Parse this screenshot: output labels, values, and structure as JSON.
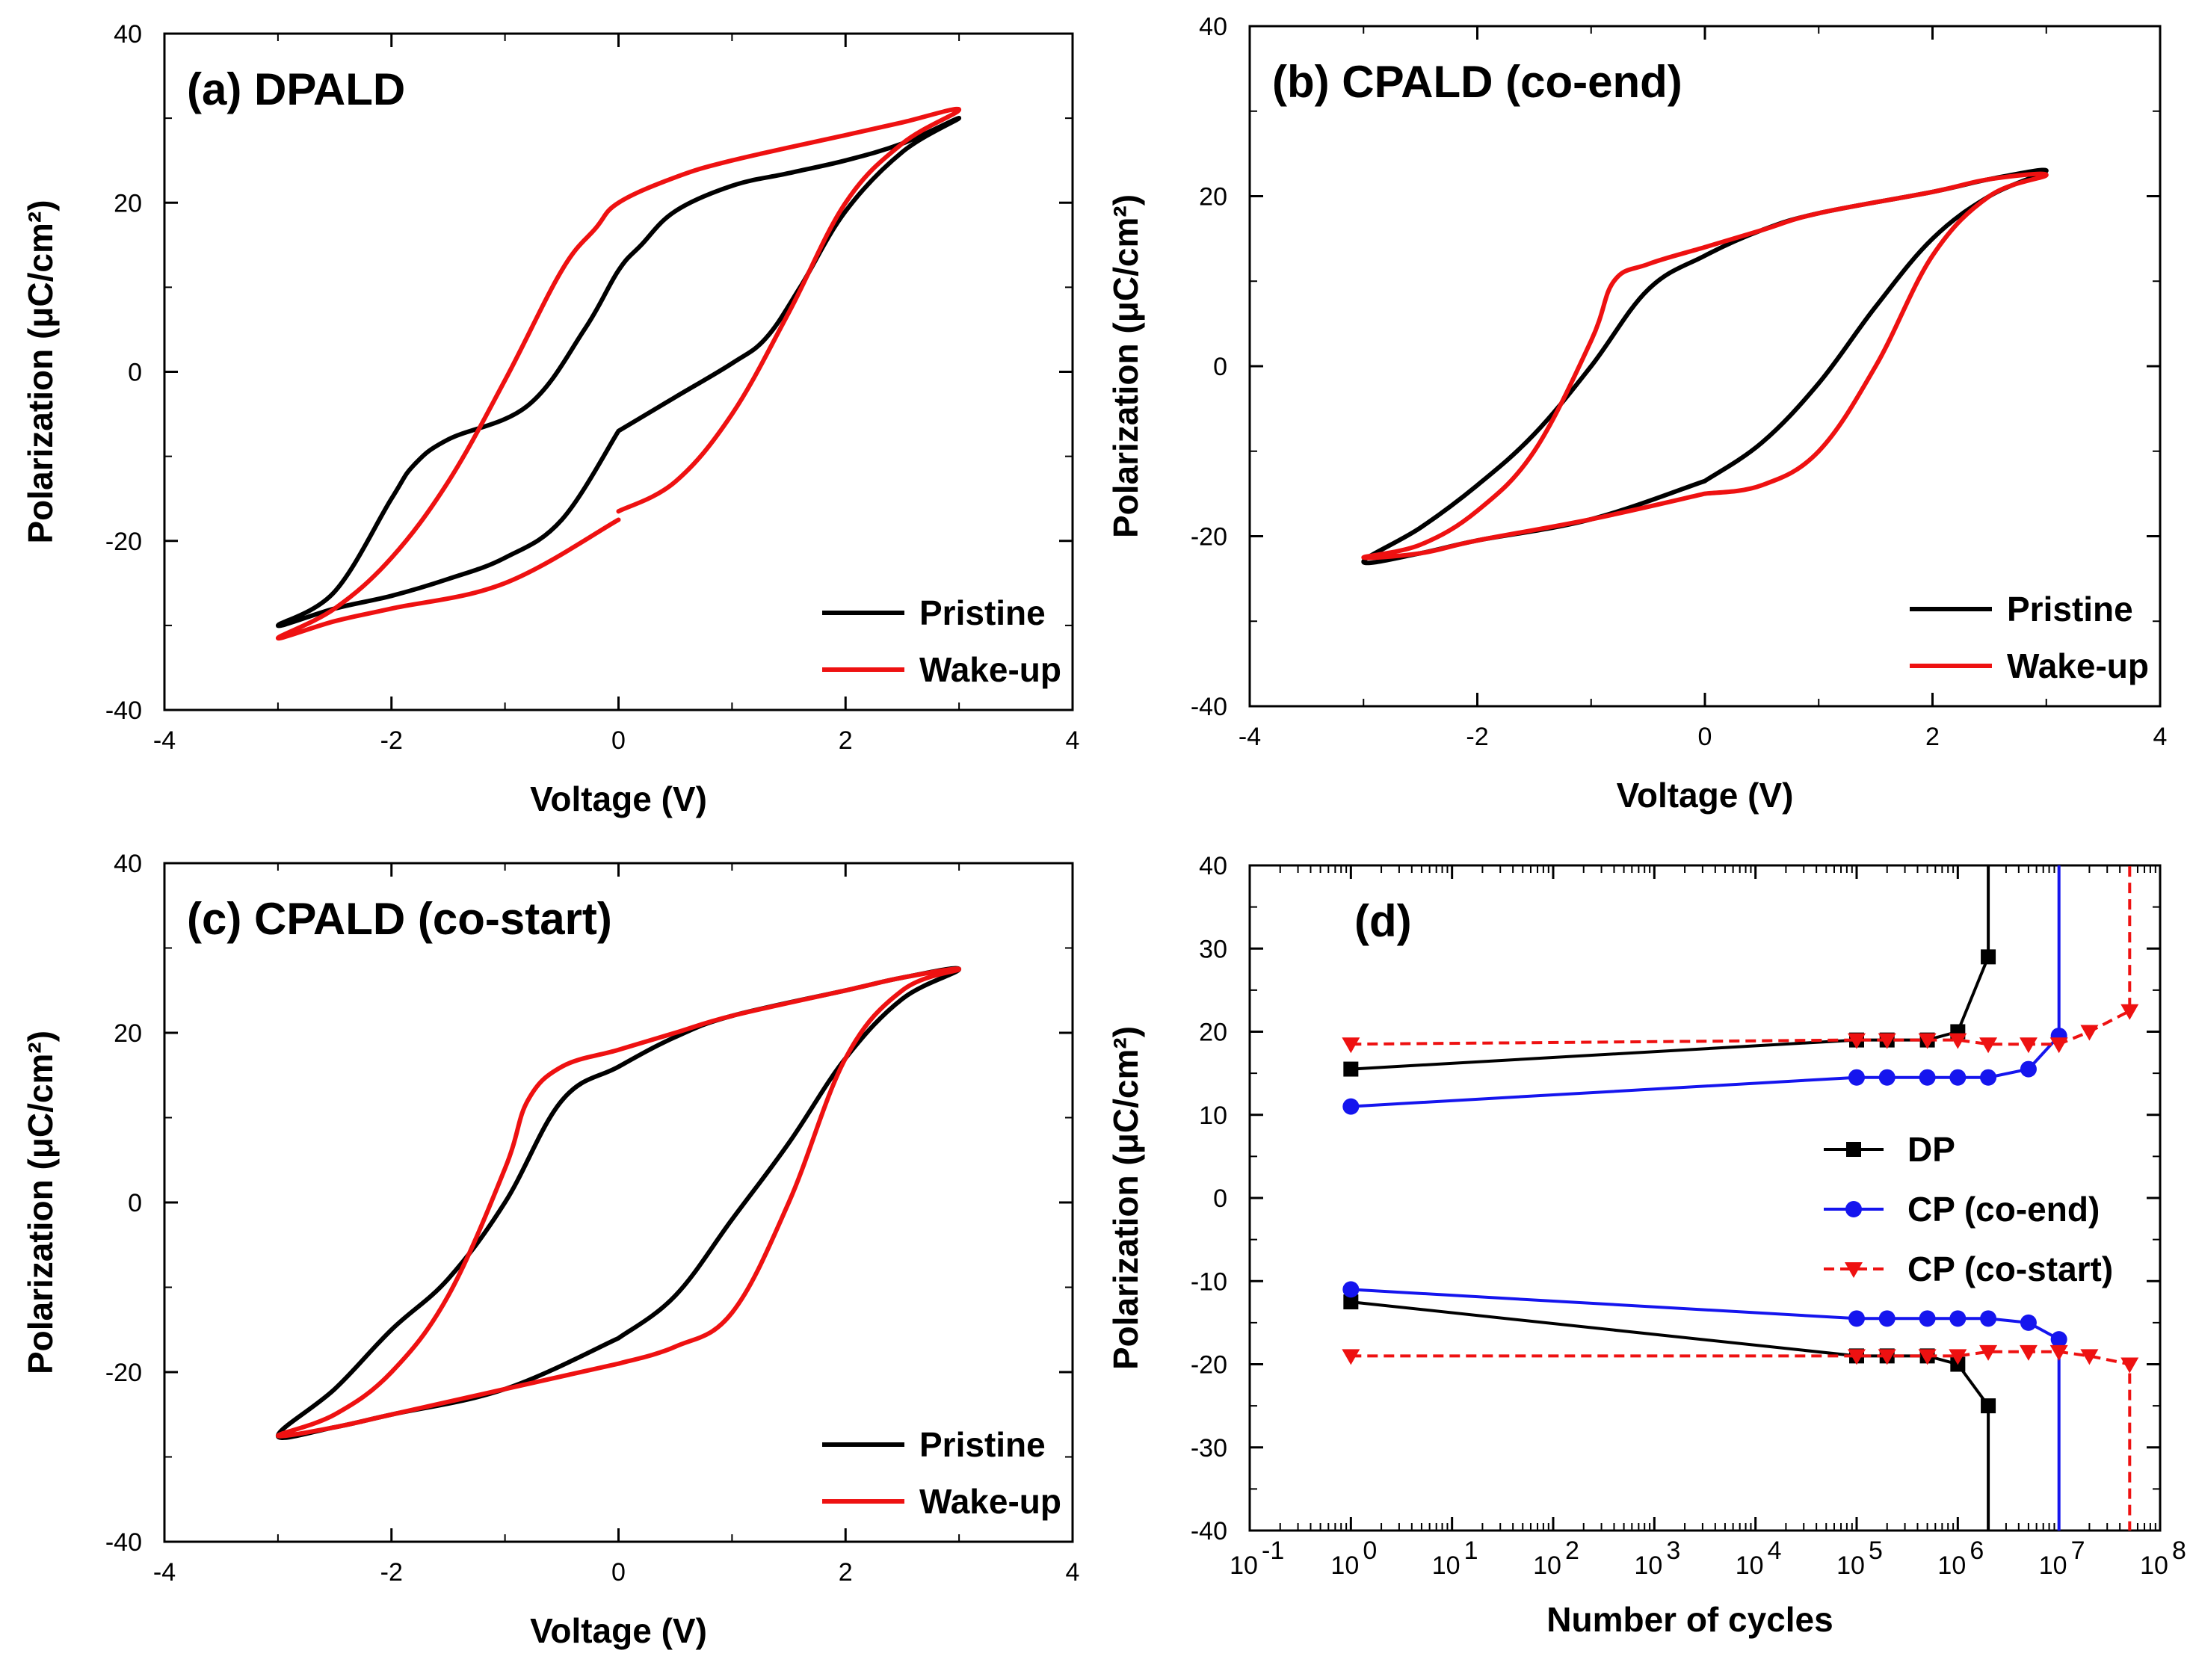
{
  "chart_data": [
    {
      "id": "a",
      "type": "line",
      "title": "(a) DPALD",
      "xlabel": "Voltage (V)",
      "ylabel": "Polarization (μC/cm²)",
      "xlim": [
        -4,
        4
      ],
      "ylim": [
        -40,
        40
      ],
      "xticks": [
        -4,
        -2,
        0,
        2,
        4
      ],
      "yticks": [
        -40,
        -20,
        0,
        20,
        40
      ],
      "xtick_labels": [
        "-4",
        "-2",
        "0",
        "2",
        "4"
      ],
      "ytick_labels": [
        "-40",
        "-20",
        "0",
        "20",
        "40"
      ],
      "legend": {
        "position": "bottom-right"
      },
      "series": [
        {
          "name": "Pristine",
          "color": "#000000",
          "x": [
            0,
            0.5,
            1.0,
            1.3,
            1.6,
            2.0,
            2.5,
            3.0,
            2.5,
            2.0,
            1.5,
            1.0,
            0.5,
            0.2,
            0,
            -0.3,
            -0.8,
            -1.5,
            -1.8,
            -2.0,
            -2.5,
            -3.0,
            -2.5,
            -2.0,
            -1.5,
            -1.0,
            -0.5,
            0
          ],
          "y": [
            -7,
            -3,
            1,
            4,
            10,
            19,
            26,
            30,
            27,
            25,
            23.5,
            22,
            19,
            15,
            12,
            5,
            -4,
            -8,
            -11,
            -15,
            -26,
            -30,
            -28,
            -26.5,
            -24.5,
            -22,
            -17.5,
            -7
          ]
        },
        {
          "name": "Wake-up",
          "color": "#ee1111",
          "x": [
            0,
            0.5,
            1.0,
            1.5,
            2.0,
            2.5,
            3.0,
            2.5,
            2.0,
            1.0,
            0.5,
            0,
            -0.2,
            -0.5,
            -1.0,
            -1.5,
            -2.0,
            -2.5,
            -3.0,
            -2.5,
            -2.0,
            -1.0,
            0
          ],
          "y": [
            -16.5,
            -13,
            -5,
            7,
            20,
            27,
            31,
            29.5,
            28,
            25,
            23,
            20,
            17,
            12,
            -1,
            -13,
            -22,
            -28,
            -31.5,
            -29.5,
            -28,
            -25,
            -17.5
          ]
        }
      ]
    },
    {
      "id": "b",
      "type": "line",
      "title": "(b) CPALD (co-end)",
      "xlabel": "Voltage (V)",
      "ylabel": "Polarization (μC/cm²)",
      "xlim": [
        -4,
        4
      ],
      "ylim": [
        -40,
        40
      ],
      "xticks": [
        -4,
        -2,
        0,
        2,
        4
      ],
      "yticks": [
        -40,
        -20,
        0,
        20,
        40
      ],
      "xtick_labels": [
        "-4",
        "-2",
        "0",
        "2",
        "4"
      ],
      "ytick_labels": [
        "-40",
        "-20",
        "0",
        "20",
        "40"
      ],
      "legend": {
        "position": "bottom-right"
      },
      "series": [
        {
          "name": "Pristine",
          "color": "#000000",
          "x": [
            0,
            0.5,
            1.0,
            1.5,
            2.0,
            2.5,
            3.0,
            2.5,
            2.0,
            1.0,
            0.5,
            0,
            -0.5,
            -1.0,
            -1.5,
            -2.0,
            -2.5,
            -3.0,
            -2.5,
            -2.0,
            -1.0,
            0
          ],
          "y": [
            -13.5,
            -9,
            -2,
            7,
            15,
            20,
            23,
            22,
            20.5,
            18,
            16,
            13,
            9,
            0,
            -8,
            -14,
            -19,
            -23,
            -22,
            -20.5,
            -18,
            -13.5
          ]
        },
        {
          "name": "Wake-up",
          "color": "#ee1111",
          "x": [
            0,
            0.5,
            1.0,
            1.5,
            2.0,
            2.5,
            3.0,
            2.5,
            2.0,
            1.0,
            0.5,
            0,
            -0.5,
            -0.8,
            -1.0,
            -1.5,
            -2.0,
            -2.5,
            -3.0,
            -2.5,
            -2.0,
            -1.0,
            0
          ],
          "y": [
            -15,
            -14,
            -10,
            0,
            13,
            20,
            22.5,
            22,
            20.5,
            18,
            16,
            14,
            12,
            10,
            3,
            -10,
            -17,
            -21,
            -22.5,
            -22,
            -20.5,
            -18,
            -15
          ]
        }
      ]
    },
    {
      "id": "c",
      "type": "line",
      "title": "(c) CPALD (co-start)",
      "xlabel": "Voltage (V)",
      "ylabel": "Polarization (μC/cm²)",
      "xlim": [
        -4,
        4
      ],
      "ylim": [
        -40,
        40
      ],
      "xticks": [
        -4,
        -2,
        0,
        2,
        4
      ],
      "yticks": [
        -40,
        -20,
        0,
        20,
        40
      ],
      "xtick_labels": [
        "-4",
        "-2",
        "0",
        "2",
        "4"
      ],
      "ytick_labels": [
        "-40",
        "-20",
        "0",
        "20",
        "40"
      ],
      "legend": {
        "position": "bottom-right"
      },
      "series": [
        {
          "name": "Pristine",
          "color": "#000000",
          "x": [
            0,
            0.5,
            1.0,
            1.5,
            2.0,
            2.5,
            3.0,
            2.5,
            2.0,
            1.0,
            0.5,
            0,
            -0.5,
            -1.0,
            -1.5,
            -2.0,
            -2.5,
            -3.0,
            -2.5,
            -2.0,
            -1.0,
            0
          ],
          "y": [
            -16,
            -11,
            -2,
            7,
            17,
            24,
            27.5,
            26.5,
            25,
            22,
            19.5,
            16,
            12,
            0,
            -9,
            -15,
            -22,
            -27.5,
            -26.5,
            -25,
            -22,
            -16
          ]
        },
        {
          "name": "Wake-up",
          "color": "#ee1111",
          "x": [
            0,
            0.5,
            1.0,
            1.5,
            2.0,
            2.5,
            3.0,
            2.5,
            2.0,
            1.0,
            0.5,
            0,
            -0.5,
            -0.8,
            -1.0,
            -1.5,
            -2.0,
            -2.5,
            -3.0,
            -2.5,
            -2.0,
            -1.0,
            0
          ],
          "y": [
            -19,
            -17,
            -13,
            0,
            17,
            25,
            27.5,
            26.5,
            25,
            22,
            20,
            18,
            16,
            12,
            4,
            -11,
            -20,
            -25,
            -27.5,
            -26.5,
            -25,
            -22,
            -19
          ]
        }
      ]
    },
    {
      "id": "d",
      "type": "line",
      "title": "(d)",
      "xlabel": "Number of cycles",
      "ylabel": "Polarization (μC/cm²)",
      "xscale": "log",
      "xlim_log10": [
        -1,
        8
      ],
      "ylim": [
        -40,
        40
      ],
      "xticks_log10": [
        -1,
        0,
        1,
        2,
        3,
        4,
        5,
        6,
        7,
        8
      ],
      "xtick_exponents": [
        "-1",
        "0",
        "1",
        "2",
        "3",
        "4",
        "5",
        "6",
        "7",
        "8"
      ],
      "xtick_base": "10",
      "yticks": [
        -40,
        -30,
        -20,
        -10,
        0,
        10,
        20,
        30,
        40
      ],
      "ytick_labels": [
        "-40",
        "-30",
        "-20",
        "-10",
        "0",
        "10",
        "20",
        "30",
        "40"
      ],
      "legend": {
        "position": "center-right"
      },
      "series": [
        {
          "name": "DP",
          "color": "#000000",
          "marker": "square",
          "dash": false,
          "x": [
            1,
            100000,
            200000,
            500000,
            1000000,
            2000000
          ],
          "y_pos": [
            15.5,
            19,
            19,
            19,
            20,
            29
          ],
          "y_neg": [
            -12.5,
            -19,
            -19,
            -19,
            -20,
            -25
          ],
          "breakdown_x": 2000000
        },
        {
          "name": "CP (co-end)",
          "color": "#1515ee",
          "marker": "circle",
          "dash": false,
          "x": [
            1,
            100000,
            200000,
            500000,
            1000000,
            2000000,
            5000000,
            10000000
          ],
          "y_pos": [
            11,
            14.5,
            14.5,
            14.5,
            14.5,
            14.5,
            15.5,
            19.5
          ],
          "y_neg": [
            -11,
            -14.5,
            -14.5,
            -14.5,
            -14.5,
            -14.5,
            -15,
            -17
          ],
          "breakdown_x": 10000000
        },
        {
          "name": "CP (co-start)",
          "color": "#ee1111",
          "marker": "triangle-down",
          "dash": true,
          "x": [
            1,
            100000,
            200000,
            500000,
            1000000,
            2000000,
            5000000,
            10000000,
            20000000,
            50000000
          ],
          "y_pos": [
            18.5,
            19,
            19,
            19,
            19,
            18.5,
            18.5,
            18.5,
            20,
            22.5
          ],
          "y_neg": [
            -19,
            -19,
            -19,
            -19,
            -19,
            -18.5,
            -18.5,
            -18.5,
            -19,
            -20
          ],
          "breakdown_x": 50000000
        }
      ]
    }
  ]
}
